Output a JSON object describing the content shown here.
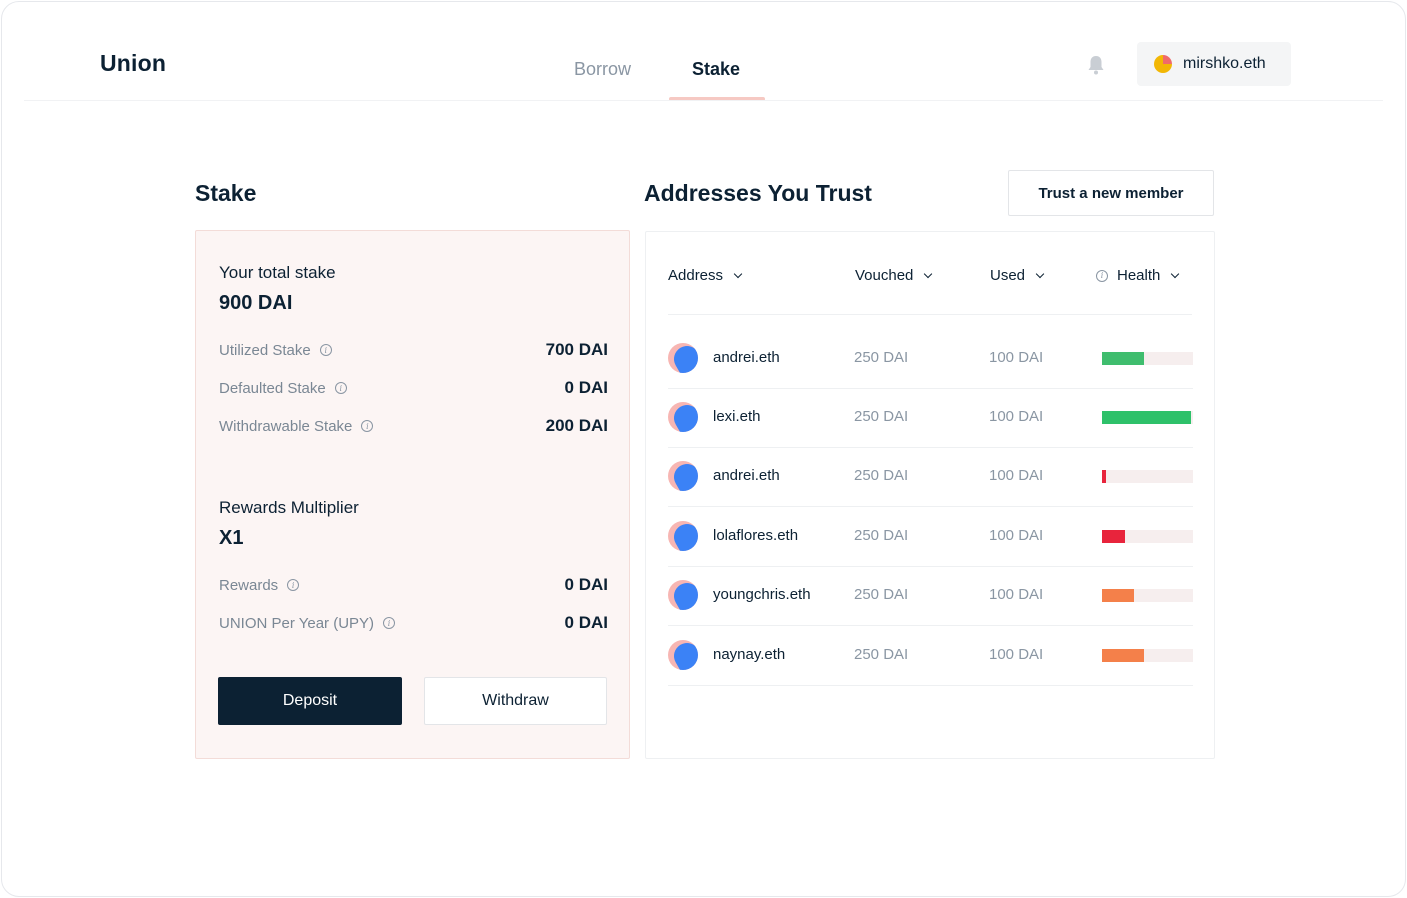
{
  "header": {
    "logo": "Union",
    "tabs": [
      {
        "label": "Borrow",
        "active": false
      },
      {
        "label": "Stake",
        "active": true
      }
    ],
    "notification_icon": "bell-icon",
    "account": {
      "label": "mirshko.eth",
      "icon": "avatar-pie-icon"
    }
  },
  "stake": {
    "title": "Stake",
    "total_label": "Your total stake",
    "total_value": "900 DAI",
    "stats": [
      {
        "label": "Utilized Stake",
        "value": "700 DAI"
      },
      {
        "label": "Defaulted Stake",
        "value": "0 DAI"
      },
      {
        "label": "Withdrawable Stake",
        "value": "200 DAI"
      }
    ],
    "multiplier_label": "Rewards Multiplier",
    "multiplier_value": "X1",
    "rewards": [
      {
        "label": "Rewards",
        "value": "0 DAI"
      },
      {
        "label": "UNION Per Year (UPY)",
        "value": "0 DAI"
      }
    ],
    "deposit_label": "Deposit",
    "withdraw_label": "Withdraw"
  },
  "trust": {
    "title": "Addresses You Trust",
    "add_button_label": "Trust a new member",
    "columns": {
      "address": "Address",
      "vouched": "Vouched",
      "used": "Used",
      "health": "Health"
    },
    "rows": [
      {
        "address": "andrei.eth",
        "vouched": "250 DAI",
        "used": "100 DAI",
        "health": 0.46,
        "color": "#3fbd6e"
      },
      {
        "address": "lexi.eth",
        "vouched": "250 DAI",
        "used": "100 DAI",
        "health": 0.98,
        "color": "#2ec16a"
      },
      {
        "address": "andrei.eth",
        "vouched": "250 DAI",
        "used": "100 DAI",
        "health": 0.04,
        "color": "#e8243c"
      },
      {
        "address": "lolaflores.eth",
        "vouched": "250 DAI",
        "used": "100 DAI",
        "health": 0.25,
        "color": "#e8243c"
      },
      {
        "address": "youngchris.eth",
        "vouched": "250 DAI",
        "used": "100 DAI",
        "health": 0.35,
        "color": "#f4804a"
      },
      {
        "address": "naynay.eth",
        "vouched": "250 DAI",
        "used": "100 DAI",
        "health": 0.46,
        "color": "#f4804a"
      }
    ]
  }
}
